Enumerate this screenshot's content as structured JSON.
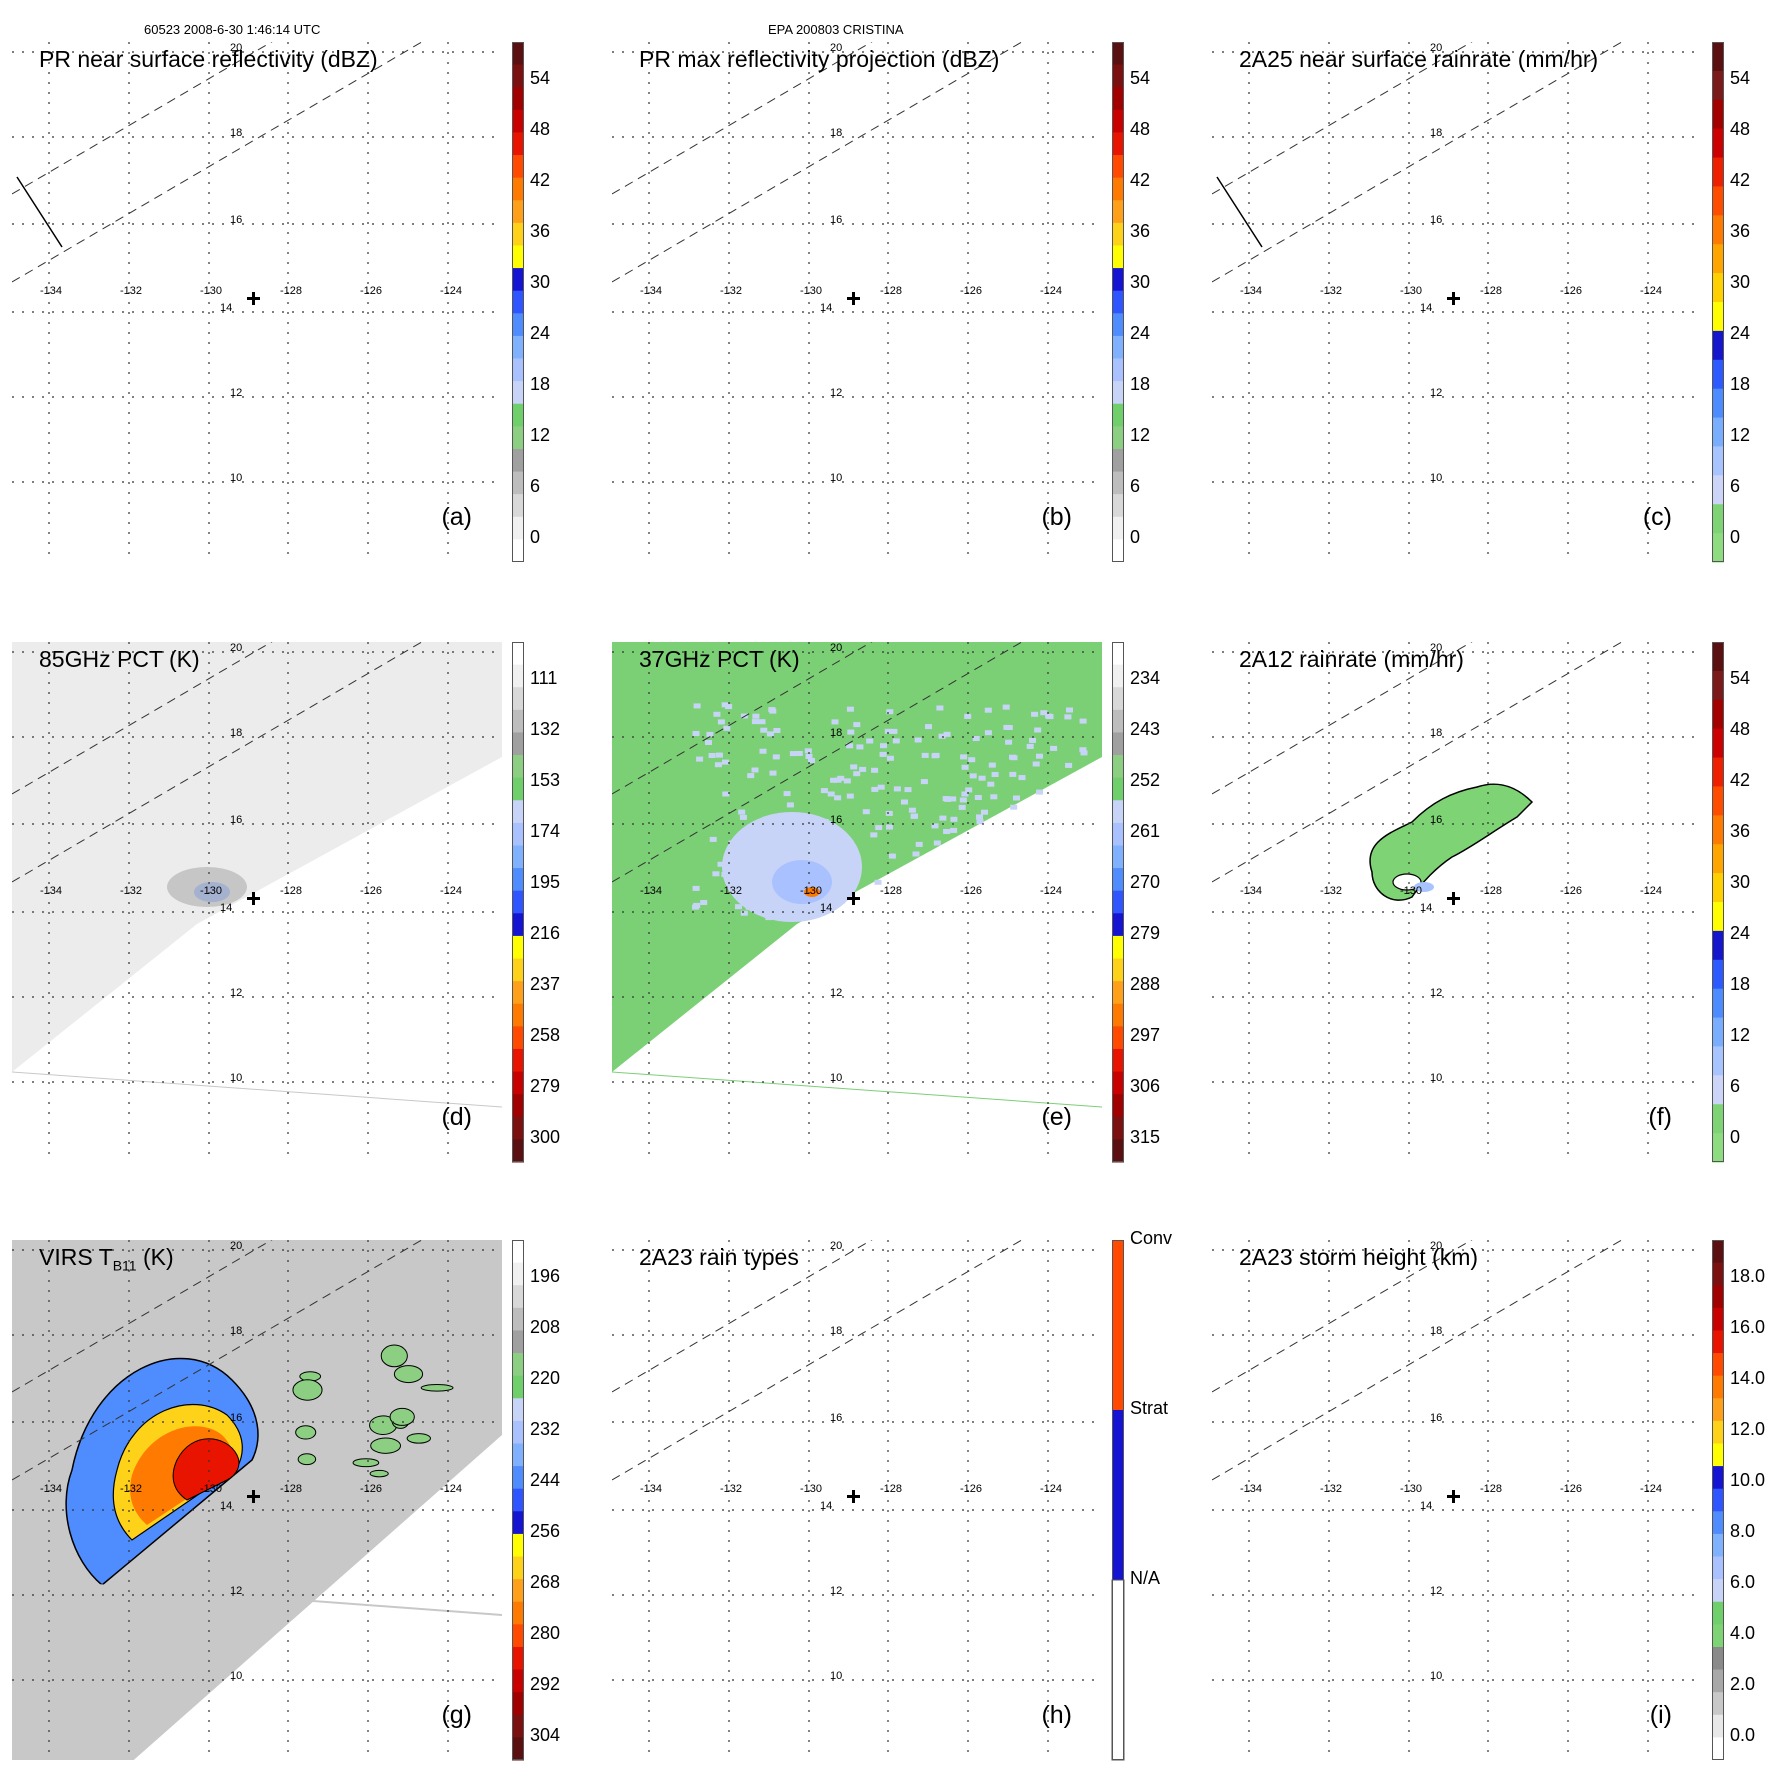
{
  "header": {
    "left": "60523 2008-6-30 1:46:14 UTC",
    "center": "EPA 200803 CRISTINA"
  },
  "lon_labels": [
    "-134",
    "-132",
    "-130",
    "-128",
    "-126",
    "-124"
  ],
  "lat_labels": [
    "20",
    "18",
    "16",
    "14",
    "12",
    "10"
  ],
  "panels": [
    {
      "label": "(a)",
      "title": "PR near surface reflectivity (dBZ)",
      "sub": "",
      "title_tail": "",
      "cbar": {
        "type": "dbz",
        "ticks": [
          "54",
          "48",
          "42",
          "36",
          "30",
          "24",
          "18",
          "12",
          "6",
          "0"
        ]
      },
      "field": "pr",
      "swath_bar": true
    },
    {
      "label": "(b)",
      "title": "PR max reflectivity projection (dBZ)",
      "sub": "",
      "title_tail": "",
      "cbar": {
        "type": "dbz",
        "ticks": [
          "54",
          "48",
          "42",
          "36",
          "30",
          "24",
          "18",
          "12",
          "6",
          "0"
        ]
      },
      "field": "pr",
      "swath_bar": false
    },
    {
      "label": "(c)",
      "title": "2A25 near surface rainrate (mm/hr)",
      "sub": "",
      "title_tail": "",
      "cbar": {
        "type": "rain",
        "ticks": [
          "54",
          "48",
          "42",
          "36",
          "30",
          "24",
          "18",
          "12",
          "6",
          "0"
        ]
      },
      "field": "pr",
      "swath_bar": true
    },
    {
      "label": "(d)",
      "title": "85GHz PCT (K)",
      "sub": "",
      "title_tail": "",
      "cbar": {
        "type": "tb",
        "ticks": [
          "111",
          "132",
          "153",
          "174",
          "195",
          "216",
          "237",
          "258",
          "279",
          "300"
        ]
      },
      "field": "tmi85",
      "swath_bar": false
    },
    {
      "label": "(e)",
      "title": "37GHz PCT (K)",
      "sub": "",
      "title_tail": "",
      "cbar": {
        "type": "tb",
        "ticks": [
          "234",
          "243",
          "252",
          "261",
          "270",
          "279",
          "288",
          "297",
          "306",
          "315"
        ]
      },
      "field": "tmi37",
      "swath_bar": false
    },
    {
      "label": "(f)",
      "title": "2A12 rainrate (mm/hr)",
      "sub": "",
      "title_tail": "",
      "cbar": {
        "type": "rain",
        "ticks": [
          "54",
          "48",
          "42",
          "36",
          "30",
          "24",
          "18",
          "12",
          "6",
          "0"
        ]
      },
      "field": "rain2a12",
      "swath_bar": false
    },
    {
      "label": "(g)",
      "title": "VIRS T",
      "sub": "B11",
      "title_tail": " (K)",
      "cbar": {
        "type": "tb",
        "ticks": [
          "196",
          "208",
          "220",
          "232",
          "244",
          "256",
          "268",
          "280",
          "292",
          "304"
        ]
      },
      "field": "virs",
      "swath_bar": false
    },
    {
      "label": "(h)",
      "title": "2A23 rain types",
      "sub": "",
      "title_tail": "",
      "cbar": {
        "type": "raintype",
        "ticks": [
          "Conv",
          "Strat",
          "N/A"
        ]
      },
      "field": "pr",
      "swath_bar": false
    },
    {
      "label": "(i)",
      "title": "2A23 storm height (km)",
      "sub": "",
      "title_tail": "",
      "cbar": {
        "type": "height",
        "ticks": [
          "18.0",
          "16.0",
          "14.0",
          "12.0",
          "10.0",
          "8.0",
          "6.0",
          "4.0",
          "2.0",
          "0.0"
        ]
      },
      "field": "pr",
      "swath_bar": false
    }
  ],
  "colors": {
    "dbz": [
      "#ffffff",
      "#f0f0f0",
      "#d8d8d8",
      "#bdbdbd",
      "#a0a0a0",
      "#8ccf82",
      "#6fcf6a",
      "#c8d4f7",
      "#a9c2ff",
      "#7fb1ff",
      "#4f8dff",
      "#2e55ff",
      "#1414d2",
      "#ffff00",
      "#ffd21a",
      "#ffa01a",
      "#ff7a00",
      "#ff4a00",
      "#e81400",
      "#c80000",
      "#a00000",
      "#7a1010",
      "#5a1010"
    ],
    "rain": [
      "#8ddc80",
      "#7ed474",
      "#ccd5f7",
      "#a8c4ff",
      "#79aeff",
      "#4d8cff",
      "#2c5aff",
      "#1616cc",
      "#ffff00",
      "#ffd000",
      "#ffa500",
      "#ff7a00",
      "#ff4d00",
      "#ee2000",
      "#cc0000",
      "#a30000",
      "#7a1a1a",
      "#5a1010"
    ],
    "tb": [
      "#5a1010",
      "#7a1010",
      "#a00000",
      "#c80000",
      "#e81400",
      "#ff4a00",
      "#ff7a00",
      "#ffa01a",
      "#ffd21a",
      "#ffff00",
      "#1414d2",
      "#2e55ff",
      "#4f8dff",
      "#7fb1ff",
      "#a9c2ff",
      "#c8d4f7",
      "#6fcf6a",
      "#8ccf82",
      "#a0a0a0",
      "#bdbdbd",
      "#d8d8d8",
      "#f0f0f0",
      "#ffffff"
    ],
    "height": [
      "#ffffff",
      "#e8e8e8",
      "#c8c8c8",
      "#a8a8a8",
      "#8a8a8a",
      "#7ed474",
      "#6fcf6a",
      "#c8d4f7",
      "#a9c2ff",
      "#7fb1ff",
      "#4f8dff",
      "#2e55ff",
      "#1414d2",
      "#ffff00",
      "#ffd21a",
      "#ffa01a",
      "#ff7a00",
      "#ff4a00",
      "#e81400",
      "#c80000",
      "#a00000",
      "#7a1010",
      "#5a1010"
    ]
  }
}
